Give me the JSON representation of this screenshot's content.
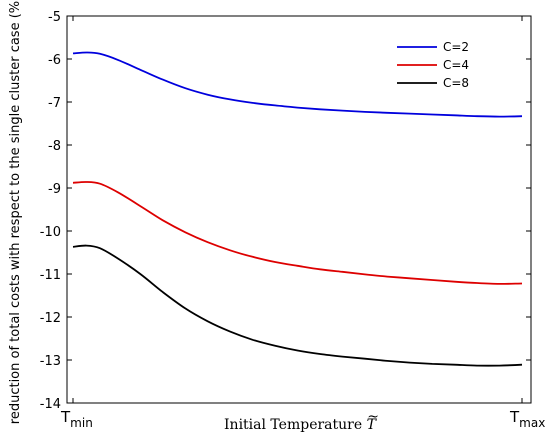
{
  "chart_data": {
    "type": "line",
    "title": "",
    "xlabel": "Initial Temperature",
    "xlabel_symbol": "T",
    "xlabel_symbol_accent": "~",
    "ylabel": "reduction of total costs with respect to the single cluster case (%)",
    "x_tick_labels": [
      {
        "base": "T",
        "sub": "min"
      },
      {
        "base": "T",
        "sub": "max"
      }
    ],
    "x": [
      0,
      0.03,
      0.06,
      0.1,
      0.15,
      0.2,
      0.25,
      0.3,
      0.35,
      0.4,
      0.45,
      0.5,
      0.55,
      0.6,
      0.65,
      0.7,
      0.75,
      0.8,
      0.85,
      0.9,
      0.95,
      1.0
    ],
    "xlim": [
      0,
      1
    ],
    "ylim": [
      -14,
      -5
    ],
    "yticks": [
      -14,
      -13,
      -12,
      -11,
      -10,
      -9,
      -8,
      -7,
      -6,
      -5
    ],
    "legend_position": "top-right",
    "grid": false,
    "series": [
      {
        "name": "C=2",
        "color": "#0000dd",
        "values": [
          -5.87,
          -5.85,
          -5.88,
          -6.02,
          -6.25,
          -6.48,
          -6.68,
          -6.83,
          -6.94,
          -7.02,
          -7.08,
          -7.13,
          -7.17,
          -7.2,
          -7.23,
          -7.25,
          -7.27,
          -7.29,
          -7.31,
          -7.33,
          -7.34,
          -7.33
        ]
      },
      {
        "name": "C=4",
        "color": "#dd0000",
        "values": [
          -8.88,
          -8.86,
          -8.9,
          -9.1,
          -9.42,
          -9.75,
          -10.03,
          -10.26,
          -10.45,
          -10.6,
          -10.72,
          -10.81,
          -10.89,
          -10.95,
          -11.01,
          -11.06,
          -11.1,
          -11.14,
          -11.18,
          -11.21,
          -11.23,
          -11.22
        ]
      },
      {
        "name": "C=8",
        "color": "#000000",
        "values": [
          -10.37,
          -10.34,
          -10.4,
          -10.64,
          -11.0,
          -11.42,
          -11.8,
          -12.1,
          -12.34,
          -12.53,
          -12.67,
          -12.78,
          -12.86,
          -12.92,
          -12.97,
          -13.02,
          -13.06,
          -13.09,
          -13.11,
          -13.13,
          -13.13,
          -13.11
        ]
      }
    ]
  }
}
